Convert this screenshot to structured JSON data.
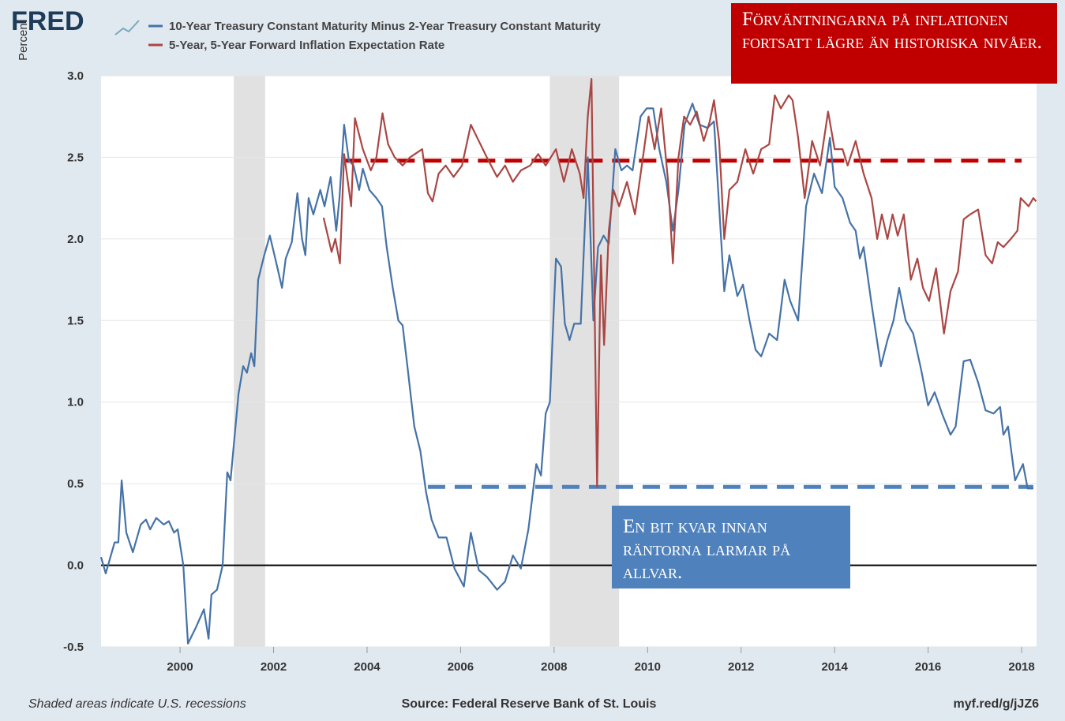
{
  "chart_data": {
    "type": "line",
    "logo": "FRED",
    "y_label": "Percent",
    "footer_left": "Shaded areas indicate U.S. recessions",
    "footer_center": "Source: Federal Reserve Bank of St. Louis",
    "footer_right": "myf.red/g/jJZ6",
    "xlim": [
      1998.31,
      2018.32
    ],
    "xticks": [
      2000,
      2002,
      2004,
      2006,
      2008,
      2010,
      2012,
      2014,
      2016,
      2018
    ],
    "ylim": [
      -0.5,
      3.0
    ],
    "yticks": [
      -0.5,
      {
        "value": 0,
        "label": "0.0"
      },
      0.5,
      {
        "value": 1,
        "label": "1.0"
      },
      1.5,
      {
        "value": 2,
        "label": "2.0"
      },
      2.5,
      {
        "value": 3,
        "label": "3.0"
      }
    ],
    "grid": true,
    "recessions": [
      [
        2001.15,
        2001.82
      ],
      [
        2007.91,
        2009.39
      ]
    ],
    "series": [
      {
        "name": "10-Year Treasury Constant Maturity Minus 2-Year Treasury Constant Maturity",
        "color": "#4572a7",
        "x": [
          1998.31,
          1998.41,
          1998.6,
          1998.68,
          1998.75,
          1998.85,
          1998.99,
          1999.16,
          1999.27,
          1999.36,
          1999.49,
          1999.65,
          1999.76,
          1999.87,
          1999.95,
          2000.07,
          2000.17,
          2000.34,
          2000.51,
          2000.61,
          2000.67,
          2000.79,
          2000.91,
          2001.01,
          2001.08,
          2001.25,
          2001.35,
          2001.43,
          2001.52,
          2001.59,
          2001.67,
          2001.8,
          2001.92,
          2002.06,
          2002.18,
          2002.26,
          2002.39,
          2002.51,
          2002.61,
          2002.68,
          2002.75,
          2002.85,
          2003.0,
          2003.09,
          2003.22,
          2003.34,
          2003.41,
          2003.51,
          2003.61,
          2003.71,
          2003.83,
          2003.91,
          2004.05,
          2004.2,
          2004.32,
          2004.42,
          2004.55,
          2004.67,
          2004.76,
          2004.87,
          2005.01,
          2005.14,
          2005.26,
          2005.38,
          2005.53,
          2005.7,
          2005.87,
          2006.07,
          2006.22,
          2006.39,
          2006.56,
          2006.78,
          2006.95,
          2007.12,
          2007.29,
          2007.45,
          2007.62,
          2007.72,
          2007.82,
          2007.91,
          2008.04,
          2008.15,
          2008.23,
          2008.33,
          2008.43,
          2008.57,
          2008.72,
          2008.84,
          2008.94,
          2009.06,
          2009.17,
          2009.31,
          2009.44,
          2009.56,
          2009.68,
          2009.85,
          2009.98,
          2010.12,
          2010.25,
          2010.4,
          2010.54,
          2010.66,
          2010.79,
          2010.96,
          2011.11,
          2011.28,
          2011.42,
          2011.53,
          2011.64,
          2011.75,
          2011.92,
          2012.04,
          2012.18,
          2012.31,
          2012.43,
          2012.6,
          2012.77,
          2012.93,
          2013.05,
          2013.22,
          2013.39,
          2013.56,
          2013.73,
          2013.9,
          2014.0,
          2014.17,
          2014.33,
          2014.45,
          2014.54,
          2014.62,
          2014.79,
          2014.99,
          2015.13,
          2015.26,
          2015.38,
          2015.52,
          2015.68,
          2015.85,
          2016.0,
          2016.14,
          2016.31,
          2016.48,
          2016.59,
          2016.76,
          2016.9,
          2017.07,
          2017.23,
          2017.4,
          2017.54,
          2017.61,
          2017.71,
          2017.86,
          2018.03,
          2018.13,
          2018.25
        ],
        "values": [
          0.05,
          -0.05,
          0.14,
          0.14,
          0.52,
          0.2,
          0.08,
          0.25,
          0.28,
          0.22,
          0.29,
          0.25,
          0.27,
          0.2,
          0.22,
          0.0,
          -0.48,
          -0.38,
          -0.27,
          -0.45,
          -0.18,
          -0.15,
          0.0,
          0.57,
          0.52,
          1.05,
          1.22,
          1.18,
          1.3,
          1.22,
          1.75,
          1.9,
          2.02,
          1.85,
          1.7,
          1.88,
          1.98,
          2.28,
          2.0,
          1.9,
          2.25,
          2.15,
          2.3,
          2.2,
          2.38,
          2.05,
          2.25,
          2.7,
          2.48,
          2.45,
          2.3,
          2.43,
          2.3,
          2.25,
          2.2,
          1.95,
          1.7,
          1.5,
          1.47,
          1.2,
          0.85,
          0.7,
          0.45,
          0.28,
          0.17,
          0.17,
          -0.02,
          -0.13,
          0.2,
          -0.03,
          -0.07,
          -0.15,
          -0.1,
          0.06,
          -0.02,
          0.22,
          0.62,
          0.55,
          0.93,
          1.0,
          1.88,
          1.83,
          1.48,
          1.38,
          1.48,
          1.48,
          2.5,
          1.5,
          1.95,
          2.02,
          1.97,
          2.55,
          2.42,
          2.45,
          2.42,
          2.75,
          2.8,
          2.8,
          2.55,
          2.35,
          2.05,
          2.3,
          2.7,
          2.83,
          2.7,
          2.68,
          2.72,
          2.2,
          1.68,
          1.9,
          1.65,
          1.72,
          1.5,
          1.32,
          1.28,
          1.42,
          1.38,
          1.75,
          1.62,
          1.5,
          2.2,
          2.4,
          2.28,
          2.62,
          2.32,
          2.25,
          2.1,
          2.05,
          1.88,
          1.95,
          1.6,
          1.22,
          1.38,
          1.5,
          1.7,
          1.5,
          1.42,
          1.2,
          0.98,
          1.06,
          0.92,
          0.8,
          0.85,
          1.25,
          1.26,
          1.12,
          0.95,
          0.93,
          0.97,
          0.8,
          0.85,
          0.52,
          0.62,
          0.47,
          0.47
        ]
      },
      {
        "name": "5-Year, 5-Year Forward Inflation Expectation Rate",
        "color": "#aa4643",
        "x": [
          2003.07,
          2003.24,
          2003.32,
          2003.42,
          2003.51,
          2003.66,
          2003.74,
          2003.91,
          2004.08,
          2004.2,
          2004.33,
          2004.45,
          2004.59,
          2004.76,
          2004.92,
          2005.18,
          2005.3,
          2005.4,
          2005.53,
          2005.68,
          2005.85,
          2006.03,
          2006.22,
          2006.39,
          2006.56,
          2006.78,
          2006.95,
          2007.12,
          2007.29,
          2007.49,
          2007.66,
          2007.82,
          2008.04,
          2008.21,
          2008.38,
          2008.55,
          2008.63,
          2008.72,
          2008.8,
          2008.92,
          2009.0,
          2009.07,
          2009.17,
          2009.27,
          2009.39,
          2009.56,
          2009.73,
          2009.9,
          2010.02,
          2010.15,
          2010.29,
          2010.44,
          2010.54,
          2010.66,
          2010.78,
          2010.91,
          2011.05,
          2011.2,
          2011.33,
          2011.42,
          2011.53,
          2011.64,
          2011.75,
          2011.92,
          2012.09,
          2012.26,
          2012.43,
          2012.6,
          2012.72,
          2012.85,
          2013.02,
          2013.1,
          2013.22,
          2013.36,
          2013.52,
          2013.69,
          2013.86,
          2014.0,
          2014.17,
          2014.28,
          2014.45,
          2014.62,
          2014.79,
          2014.91,
          2015.01,
          2015.13,
          2015.24,
          2015.35,
          2015.48,
          2015.63,
          2015.77,
          2015.89,
          2016.02,
          2016.17,
          2016.34,
          2016.48,
          2016.64,
          2016.76,
          2016.9,
          2017.07,
          2017.23,
          2017.37,
          2017.49,
          2017.61,
          2017.77,
          2017.91,
          2017.98,
          2018.15,
          2018.25,
          2018.31
        ],
        "values": [
          2.13,
          1.92,
          2.0,
          1.85,
          2.52,
          2.2,
          2.74,
          2.55,
          2.42,
          2.5,
          2.77,
          2.58,
          2.5,
          2.45,
          2.5,
          2.55,
          2.28,
          2.23,
          2.4,
          2.45,
          2.38,
          2.45,
          2.7,
          2.6,
          2.5,
          2.38,
          2.45,
          2.35,
          2.42,
          2.45,
          2.52,
          2.45,
          2.55,
          2.35,
          2.55,
          2.4,
          2.25,
          2.75,
          2.98,
          0.48,
          1.9,
          1.35,
          2.05,
          2.3,
          2.2,
          2.35,
          2.15,
          2.5,
          2.75,
          2.55,
          2.8,
          2.35,
          1.85,
          2.5,
          2.75,
          2.7,
          2.78,
          2.6,
          2.72,
          2.85,
          2.6,
          2.0,
          2.3,
          2.35,
          2.55,
          2.4,
          2.55,
          2.58,
          2.88,
          2.8,
          2.88,
          2.85,
          2.62,
          2.25,
          2.6,
          2.45,
          2.78,
          2.55,
          2.55,
          2.45,
          2.6,
          2.4,
          2.25,
          2.0,
          2.15,
          2.0,
          2.15,
          2.02,
          2.15,
          1.75,
          1.88,
          1.7,
          1.62,
          1.82,
          1.42,
          1.68,
          1.8,
          2.12,
          2.15,
          2.18,
          1.9,
          1.85,
          1.98,
          1.95,
          2.0,
          2.05,
          2.25,
          2.2,
          2.25,
          2.23
        ]
      }
    ],
    "reference_lines": [
      {
        "y": 2.48,
        "x": [
          2003.5,
          2018.0
        ],
        "color": "#c00000"
      },
      {
        "y": 0.48,
        "x": [
          2005.3,
          2018.25
        ],
        "color": "#4f81bd"
      }
    ],
    "annotations": [
      {
        "text": "Förväntningarna på inflationen fortsatt lägre än historiska nivåer.",
        "color": "#c00000"
      },
      {
        "text": "En bit kvar innan räntorna larmar på allvar.",
        "color": "#4f81bd"
      }
    ]
  }
}
